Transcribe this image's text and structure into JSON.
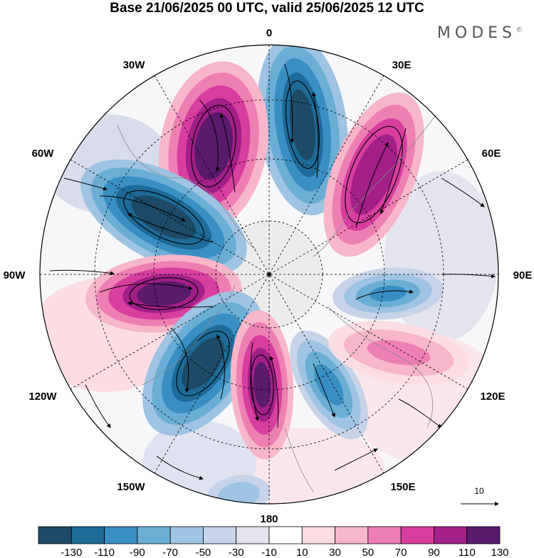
{
  "title": "Base 21/06/2025 00 UTC, valid 25/06/2025 12 UTC",
  "brand": "MODES",
  "brand_mark": "©",
  "longitude_labels": {
    "lon_0": "0",
    "lon_30e": "30E",
    "lon_60e": "60E",
    "lon_90e": "90E",
    "lon_120e": "120E",
    "lon_150e": "150E",
    "lon_180": "180",
    "lon_150w": "150W",
    "lon_120w": "120W",
    "lon_90w": "90W",
    "lon_60w": "60W",
    "lon_30w": "30W"
  },
  "reference_vector": "10",
  "colorbar": {
    "colors": [
      "#1d4a66",
      "#1e6a98",
      "#3a8fc2",
      "#6aaed6",
      "#9ec3e3",
      "#c6d3e8",
      "#e4e4ef",
      "#ffffff",
      "#fbdde3",
      "#f7b6c9",
      "#ee7fb3",
      "#d73e9e",
      "#a31f8a",
      "#5a1a6e"
    ],
    "ticks": [
      "-130",
      "-110",
      "-90",
      "-70",
      "-50",
      "-30",
      "-10",
      "10",
      "30",
      "50",
      "70",
      "90",
      "110",
      "130"
    ]
  },
  "colors": {
    "polar_cap": "#ececec",
    "contour": "#000000",
    "graticule": "#000000"
  },
  "anomaly_lobes": [
    {
      "name": "atlantic-low",
      "value": -130
    },
    {
      "name": "greenland-high",
      "value": 130
    },
    {
      "name": "canada-low",
      "value": -130
    },
    {
      "name": "alaska-high",
      "value": 130
    },
    {
      "name": "pacific-low",
      "value": -130
    },
    {
      "name": "bering-high",
      "value": 110
    },
    {
      "name": "siberia-low",
      "value": -90
    },
    {
      "name": "scandinavia-high",
      "value": 110
    },
    {
      "name": "ural-low",
      "value": -70
    },
    {
      "name": "asia-high",
      "value": 50
    },
    {
      "name": "northwest-pacific-low",
      "value": -90
    }
  ]
}
